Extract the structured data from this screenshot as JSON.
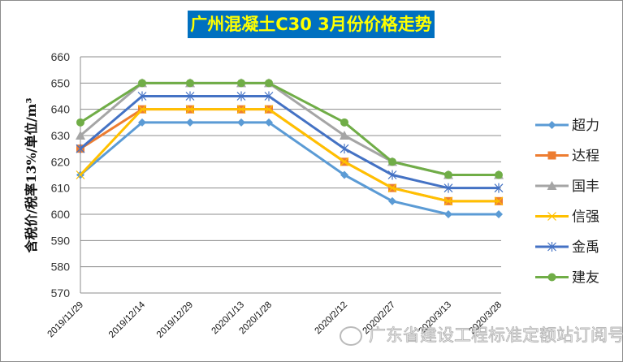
{
  "chart_data": {
    "type": "line",
    "title": "广州混凝土C30 3月份价格走势",
    "xlabel": "",
    "ylabel": "含税价/税率13%/单位/m³",
    "ylim": [
      570,
      660
    ],
    "yticks": [
      570,
      580,
      590,
      600,
      610,
      620,
      630,
      640,
      650,
      660
    ],
    "grid": true,
    "legend_position": "right",
    "categories": [
      "2019/11/29",
      "2019/12/14",
      "2019/12/29",
      "2020/1/13",
      "2020/1/28",
      "2020/2/12",
      "2020/2/27",
      "2020/3/13",
      "2020/3/28"
    ],
    "series": [
      {
        "name": "超力",
        "color": "#5b9bd5",
        "marker": "diamond",
        "values": [
          615,
          635,
          635,
          635,
          635,
          615,
          605,
          600,
          600
        ]
      },
      {
        "name": "达程",
        "color": "#ed7d31",
        "marker": "square",
        "values": [
          625,
          640,
          640,
          640,
          640,
          620,
          610,
          605,
          605
        ]
      },
      {
        "name": "国丰",
        "color": "#a5a5a5",
        "marker": "triangle",
        "values": [
          630,
          650,
          650,
          650,
          650,
          630,
          620,
          615,
          615
        ]
      },
      {
        "name": "信强",
        "color": "#ffc000",
        "marker": "x",
        "values": [
          615,
          640,
          640,
          640,
          640,
          620,
          610,
          605,
          605
        ]
      },
      {
        "name": "金禹",
        "color": "#4472c4",
        "marker": "star",
        "values": [
          625,
          645,
          645,
          645,
          645,
          625,
          615,
          610,
          610
        ]
      },
      {
        "name": "建友",
        "color": "#70ad47",
        "marker": "circle",
        "values": [
          635,
          650,
          650,
          650,
          650,
          635,
          620,
          615,
          615
        ]
      }
    ]
  },
  "header": {
    "title": "广州混凝土C30 3月份价格走势"
  },
  "watermark": {
    "text": "广东省建设工程标准定额站订阅号"
  }
}
